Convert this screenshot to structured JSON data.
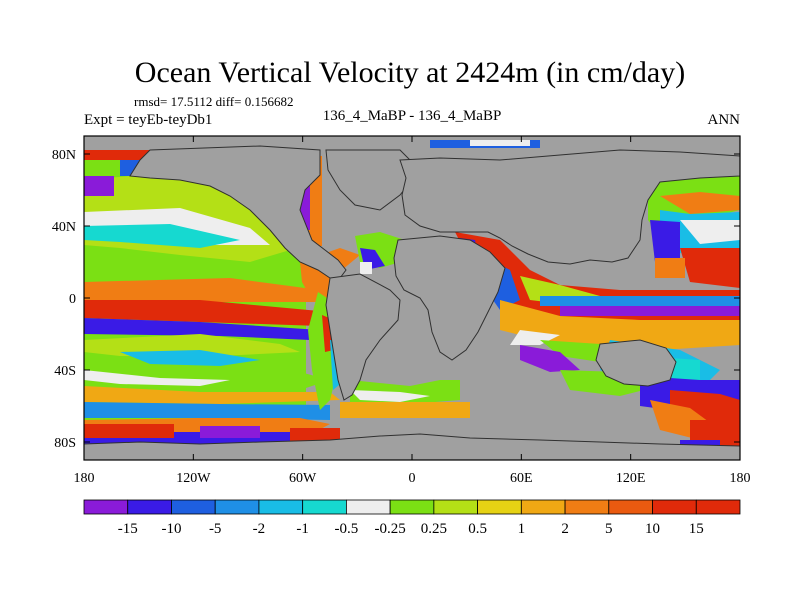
{
  "chart_data": {
    "type": "heatmap",
    "title": "Ocean Vertical Velocity at 2424m (in cm/day)",
    "stats_line": "rmsd= 17.5112 diff= 0.156682",
    "experiment_label": "Expt = teyEb-teyDb1",
    "case_label": "136_4_MaBP - 136_4_MaBP",
    "season_label": "ANN",
    "x_range": [
      -180,
      180
    ],
    "y_range": [
      -90,
      90
    ],
    "x_ticks": [
      {
        "value": -180,
        "label": "180"
      },
      {
        "value": -120,
        "label": "120W"
      },
      {
        "value": -60,
        "label": "60W"
      },
      {
        "value": 0,
        "label": "0"
      },
      {
        "value": 60,
        "label": "60E"
      },
      {
        "value": 120,
        "label": "120E"
      },
      {
        "value": 180,
        "label": "180"
      }
    ],
    "y_ticks": [
      {
        "value": 80,
        "label": "80N"
      },
      {
        "value": 40,
        "label": "40N"
      },
      {
        "value": 0,
        "label": "0"
      },
      {
        "value": -40,
        "label": "40S"
      },
      {
        "value": -80,
        "label": "80S"
      }
    ],
    "colorbar": {
      "colors": [
        "#8a1bd9",
        "#3a1be6",
        "#1e5fe0",
        "#1f8fe6",
        "#19bde6",
        "#16d9d0",
        "#eeeeee",
        "#7be014",
        "#b4e016",
        "#e6d214",
        "#f0a814",
        "#f07d14",
        "#ea5a10",
        "#e02a0a"
      ],
      "labels": [
        "-15",
        "-10",
        "-5",
        "-2",
        "-1",
        "-0.5",
        "-0.25",
        "0.25",
        "0.5",
        "1",
        "2",
        "5",
        "10",
        "15"
      ]
    },
    "land_color": "#a0a0a0"
  }
}
